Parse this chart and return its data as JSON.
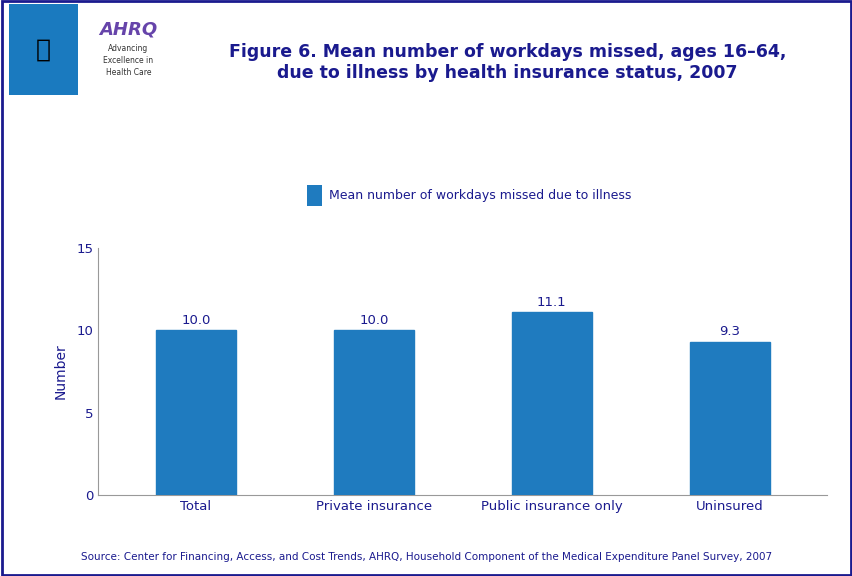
{
  "title_line1": "Figure 6. Mean number of workdays missed, ages 16–64,",
  "title_line2": "due to illness by health insurance status, 2007",
  "categories": [
    "Total",
    "Private insurance",
    "Public insurance only",
    "Uninsured"
  ],
  "values": [
    10.0,
    10.0,
    11.1,
    9.3
  ],
  "bar_color": "#1f7bbf",
  "ylabel": "Number",
  "ylim": [
    0,
    15
  ],
  "yticks": [
    0,
    5,
    10,
    15
  ],
  "legend_label": "Mean number of workdays missed due to illness",
  "source_text": "Source: Center for Financing, Access, and Cost Trends, AHRQ, Household Component of the Medical Expenditure Panel Survey, 2007",
  "title_color": "#1a1a8e",
  "bar_label_color": "#1a1a8e",
  "axis_color": "#1a1a8e",
  "header_bar_color": "#1a1a8e",
  "background_color": "#ffffff",
  "title_fontsize": 12.5,
  "label_fontsize": 9.5,
  "source_fontsize": 7.5,
  "legend_fontsize": 9,
  "ylabel_fontsize": 10
}
